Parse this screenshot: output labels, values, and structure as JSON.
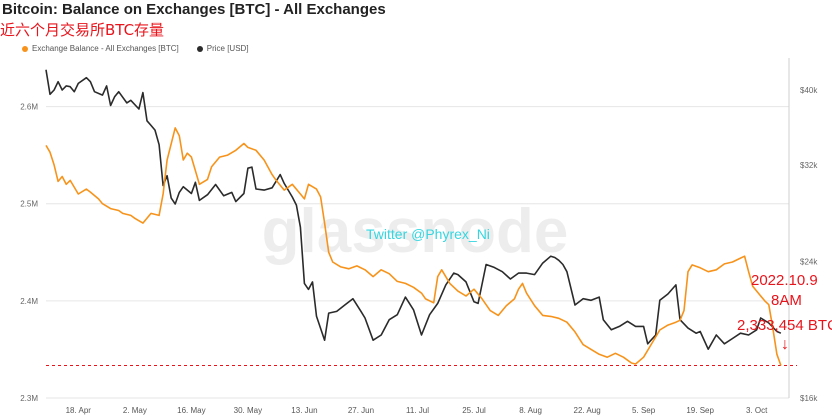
{
  "header": {
    "title": "Bitcoin: Balance on Exchanges [BTC] - All Exchanges",
    "subtitle": "近六个月交易所BTC存量"
  },
  "watermark": {
    "text": "glassnode",
    "twitter": "Twitter @Phyrex_Ni"
  },
  "annotations": {
    "date": "2022.10.9",
    "time": "8AM",
    "value": "2,333,454 BTC",
    "arrow": "↓"
  },
  "colors": {
    "balance": "#f7931a",
    "price": "#2b2b2b",
    "reference_line": "#e8141c",
    "grid": "#e6e6e6"
  },
  "chart_data": {
    "type": "line",
    "x_tick_labels": [
      "18. Apr",
      "2. May",
      "16. May",
      "30. May",
      "13. Jun",
      "27. Jun",
      "11. Jul",
      "25. Jul",
      "8. Aug",
      "22. Aug",
      "5. Sep",
      "19. Sep",
      "3. Oct"
    ],
    "x_tick_dates": [
      "2022-04-18",
      "2022-05-02",
      "2022-05-16",
      "2022-05-30",
      "2022-06-13",
      "2022-06-27",
      "2022-07-11",
      "2022-07-25",
      "2022-08-08",
      "2022-08-22",
      "2022-09-05",
      "2022-09-19",
      "2022-10-03"
    ],
    "x_range": [
      "2022-04-10",
      "2022-10-11"
    ],
    "y_left": {
      "ticks": [
        "2.3M",
        "2.4M",
        "2.5M",
        "2.6M"
      ],
      "tick_values": [
        2300000,
        2400000,
        2500000,
        2600000
      ],
      "range": [
        2300000,
        2650000
      ]
    },
    "y_right": {
      "ticks": [
        "$16k",
        "$24k",
        "$32k",
        "$40k"
      ],
      "tick_values": [
        16000,
        24000,
        32000,
        40000
      ],
      "range": [
        16000,
        44000
      ],
      "scale": "log"
    },
    "reference_line": {
      "value": 2333454
    },
    "grid": "horizontal",
    "legend_position": "top-left",
    "series": [
      {
        "name": "Exchange Balance - All Exchanges [BTC]",
        "axis": "left",
        "values": [
          [
            "2022-04-10",
            2560000
          ],
          [
            "2022-04-11",
            2553000
          ],
          [
            "2022-04-12",
            2540000
          ],
          [
            "2022-04-13",
            2523000
          ],
          [
            "2022-04-14",
            2528000
          ],
          [
            "2022-04-15",
            2520000
          ],
          [
            "2022-04-16",
            2524000
          ],
          [
            "2022-04-18",
            2510000
          ],
          [
            "2022-04-20",
            2515000
          ],
          [
            "2022-04-21",
            2512000
          ],
          [
            "2022-04-23",
            2505000
          ],
          [
            "2022-04-24",
            2500000
          ],
          [
            "2022-04-26",
            2495000
          ],
          [
            "2022-04-28",
            2493000
          ],
          [
            "2022-04-29",
            2490000
          ],
          [
            "2022-05-01",
            2488000
          ],
          [
            "2022-05-02",
            2485000
          ],
          [
            "2022-05-04",
            2480000
          ],
          [
            "2022-05-06",
            2490000
          ],
          [
            "2022-05-08",
            2488000
          ],
          [
            "2022-05-09",
            2510000
          ],
          [
            "2022-05-10",
            2545000
          ],
          [
            "2022-05-12",
            2578000
          ],
          [
            "2022-05-13",
            2570000
          ],
          [
            "2022-05-14",
            2545000
          ],
          [
            "2022-05-15",
            2552000
          ],
          [
            "2022-05-16",
            2548000
          ],
          [
            "2022-05-18",
            2520000
          ],
          [
            "2022-05-20",
            2525000
          ],
          [
            "2022-05-21",
            2538000
          ],
          [
            "2022-05-23",
            2548000
          ],
          [
            "2022-05-25",
            2550000
          ],
          [
            "2022-05-27",
            2555000
          ],
          [
            "2022-05-29",
            2562000
          ],
          [
            "2022-05-30",
            2558000
          ],
          [
            "2022-06-01",
            2555000
          ],
          [
            "2022-06-03",
            2545000
          ],
          [
            "2022-06-05",
            2530000
          ],
          [
            "2022-06-06",
            2524000
          ],
          [
            "2022-06-08",
            2514000
          ],
          [
            "2022-06-10",
            2520000
          ],
          [
            "2022-06-12",
            2510000
          ],
          [
            "2022-06-13",
            2505000
          ],
          [
            "2022-06-14",
            2520000
          ],
          [
            "2022-06-16",
            2515000
          ],
          [
            "2022-06-17",
            2507000
          ],
          [
            "2022-06-18",
            2480000
          ],
          [
            "2022-06-19",
            2450000
          ],
          [
            "2022-06-20",
            2440000
          ],
          [
            "2022-06-22",
            2435000
          ],
          [
            "2022-06-24",
            2433000
          ],
          [
            "2022-06-26",
            2436000
          ],
          [
            "2022-06-28",
            2432000
          ],
          [
            "2022-06-30",
            2425000
          ],
          [
            "2022-07-02",
            2432000
          ],
          [
            "2022-07-04",
            2428000
          ],
          [
            "2022-07-06",
            2420000
          ],
          [
            "2022-07-08",
            2418000
          ],
          [
            "2022-07-10",
            2414000
          ],
          [
            "2022-07-12",
            2408000
          ],
          [
            "2022-07-13",
            2402000
          ],
          [
            "2022-07-15",
            2398000
          ],
          [
            "2022-07-16",
            2425000
          ],
          [
            "2022-07-17",
            2432000
          ],
          [
            "2022-07-19",
            2418000
          ],
          [
            "2022-07-21",
            2410000
          ],
          [
            "2022-07-23",
            2405000
          ],
          [
            "2022-07-25",
            2412000
          ],
          [
            "2022-07-27",
            2402000
          ],
          [
            "2022-07-29",
            2390000
          ],
          [
            "2022-07-31",
            2385000
          ],
          [
            "2022-08-02",
            2395000
          ],
          [
            "2022-08-04",
            2402000
          ],
          [
            "2022-08-05",
            2412000
          ],
          [
            "2022-08-06",
            2418000
          ],
          [
            "2022-08-07",
            2408000
          ],
          [
            "2022-08-09",
            2395000
          ],
          [
            "2022-08-11",
            2385000
          ],
          [
            "2022-08-13",
            2384000
          ],
          [
            "2022-08-15",
            2382000
          ],
          [
            "2022-08-17",
            2378000
          ],
          [
            "2022-08-19",
            2368000
          ],
          [
            "2022-08-21",
            2355000
          ],
          [
            "2022-08-23",
            2350000
          ],
          [
            "2022-08-25",
            2345000
          ],
          [
            "2022-08-27",
            2342000
          ],
          [
            "2022-08-29",
            2346000
          ],
          [
            "2022-08-31",
            2342000
          ],
          [
            "2022-09-02",
            2336000
          ],
          [
            "2022-09-03",
            2335000
          ],
          [
            "2022-09-05",
            2342000
          ],
          [
            "2022-09-07",
            2356000
          ],
          [
            "2022-09-09",
            2370000
          ],
          [
            "2022-09-11",
            2375000
          ],
          [
            "2022-09-13",
            2378000
          ],
          [
            "2022-09-14",
            2380000
          ],
          [
            "2022-09-15",
            2390000
          ],
          [
            "2022-09-16",
            2430000
          ],
          [
            "2022-09-17",
            2437000
          ],
          [
            "2022-09-19",
            2434000
          ],
          [
            "2022-09-21",
            2430000
          ],
          [
            "2022-09-23",
            2432000
          ],
          [
            "2022-09-25",
            2438000
          ],
          [
            "2022-09-27",
            2440000
          ],
          [
            "2022-09-29",
            2444000
          ],
          [
            "2022-09-30",
            2446000
          ],
          [
            "2022-10-01",
            2430000
          ],
          [
            "2022-10-02",
            2415000
          ],
          [
            "2022-10-03",
            2410000
          ],
          [
            "2022-10-04",
            2405000
          ],
          [
            "2022-10-05",
            2400000
          ],
          [
            "2022-10-06",
            2396000
          ],
          [
            "2022-10-07",
            2372000
          ],
          [
            "2022-10-08",
            2345000
          ],
          [
            "2022-10-09",
            2333454
          ]
        ]
      },
      {
        "name": "Price [USD]",
        "axis": "right",
        "values": [
          [
            "2022-04-10",
            42500
          ],
          [
            "2022-04-11",
            39500
          ],
          [
            "2022-04-12",
            40000
          ],
          [
            "2022-04-13",
            41000
          ],
          [
            "2022-04-14",
            40000
          ],
          [
            "2022-04-15",
            40500
          ],
          [
            "2022-04-16",
            40400
          ],
          [
            "2022-04-17",
            39800
          ],
          [
            "2022-04-18",
            40800
          ],
          [
            "2022-04-20",
            41500
          ],
          [
            "2022-04-21",
            41000
          ],
          [
            "2022-04-22",
            39800
          ],
          [
            "2022-04-24",
            39400
          ],
          [
            "2022-04-25",
            40500
          ],
          [
            "2022-04-26",
            38200
          ],
          [
            "2022-04-27",
            39200
          ],
          [
            "2022-04-28",
            39800
          ],
          [
            "2022-04-30",
            38500
          ],
          [
            "2022-05-01",
            38800
          ],
          [
            "2022-05-03",
            37800
          ],
          [
            "2022-05-04",
            39700
          ],
          [
            "2022-05-05",
            36500
          ],
          [
            "2022-05-06",
            36000
          ],
          [
            "2022-05-07",
            35500
          ],
          [
            "2022-05-08",
            34000
          ],
          [
            "2022-05-09",
            30100
          ],
          [
            "2022-05-10",
            31000
          ],
          [
            "2022-05-11",
            29000
          ],
          [
            "2022-05-12",
            28500
          ],
          [
            "2022-05-13",
            29500
          ],
          [
            "2022-05-14",
            30000
          ],
          [
            "2022-05-16",
            29400
          ],
          [
            "2022-05-17",
            30400
          ],
          [
            "2022-05-18",
            28800
          ],
          [
            "2022-05-20",
            29300
          ],
          [
            "2022-05-22",
            30200
          ],
          [
            "2022-05-24",
            29200
          ],
          [
            "2022-05-26",
            29500
          ],
          [
            "2022-05-27",
            28700
          ],
          [
            "2022-05-29",
            29400
          ],
          [
            "2022-05-30",
            31700
          ],
          [
            "2022-05-31",
            31800
          ],
          [
            "2022-06-01",
            29800
          ],
          [
            "2022-06-03",
            29700
          ],
          [
            "2022-06-05",
            29900
          ],
          [
            "2022-06-07",
            31100
          ],
          [
            "2022-06-08",
            30300
          ],
          [
            "2022-06-10",
            29100
          ],
          [
            "2022-06-11",
            28400
          ],
          [
            "2022-06-12",
            26600
          ],
          [
            "2022-06-13",
            22500
          ],
          [
            "2022-06-14",
            22100
          ],
          [
            "2022-06-15",
            22600
          ],
          [
            "2022-06-16",
            20400
          ],
          [
            "2022-06-18",
            19000
          ],
          [
            "2022-06-19",
            20600
          ],
          [
            "2022-06-21",
            20700
          ],
          [
            "2022-06-23",
            21100
          ],
          [
            "2022-06-25",
            21500
          ],
          [
            "2022-06-27",
            20700
          ],
          [
            "2022-06-28",
            20300
          ],
          [
            "2022-06-30",
            19000
          ],
          [
            "2022-07-02",
            19300
          ],
          [
            "2022-07-04",
            20200
          ],
          [
            "2022-07-06",
            20500
          ],
          [
            "2022-07-08",
            21600
          ],
          [
            "2022-07-10",
            20800
          ],
          [
            "2022-07-12",
            19300
          ],
          [
            "2022-07-14",
            20500
          ],
          [
            "2022-07-16",
            21200
          ],
          [
            "2022-07-18",
            22400
          ],
          [
            "2022-07-20",
            23200
          ],
          [
            "2022-07-21",
            23100
          ],
          [
            "2022-07-23",
            22600
          ],
          [
            "2022-07-25",
            21300
          ],
          [
            "2022-07-26",
            21200
          ],
          [
            "2022-07-28",
            23800
          ],
          [
            "2022-07-30",
            23600
          ],
          [
            "2022-08-01",
            23300
          ],
          [
            "2022-08-03",
            22800
          ],
          [
            "2022-08-05",
            23200
          ],
          [
            "2022-08-07",
            23200
          ],
          [
            "2022-08-09",
            23100
          ],
          [
            "2022-08-11",
            23900
          ],
          [
            "2022-08-13",
            24400
          ],
          [
            "2022-08-14",
            24300
          ],
          [
            "2022-08-15",
            24100
          ],
          [
            "2022-08-16",
            23800
          ],
          [
            "2022-08-17",
            23300
          ],
          [
            "2022-08-19",
            21100
          ],
          [
            "2022-08-21",
            21500
          ],
          [
            "2022-08-23",
            21400
          ],
          [
            "2022-08-25",
            21600
          ],
          [
            "2022-08-26",
            20200
          ],
          [
            "2022-08-28",
            19600
          ],
          [
            "2022-08-30",
            19800
          ],
          [
            "2022-09-01",
            20100
          ],
          [
            "2022-09-03",
            19800
          ],
          [
            "2022-09-05",
            19800
          ],
          [
            "2022-09-06",
            18800
          ],
          [
            "2022-09-08",
            19300
          ],
          [
            "2022-09-09",
            21400
          ],
          [
            "2022-09-11",
            21800
          ],
          [
            "2022-09-13",
            22400
          ],
          [
            "2022-09-14",
            20200
          ],
          [
            "2022-09-16",
            19700
          ],
          [
            "2022-09-18",
            19400
          ],
          [
            "2022-09-19",
            19500
          ],
          [
            "2022-09-21",
            18500
          ],
          [
            "2022-09-23",
            19300
          ],
          [
            "2022-09-25",
            18800
          ],
          [
            "2022-09-27",
            19100
          ],
          [
            "2022-09-29",
            19400
          ],
          [
            "2022-10-01",
            19300
          ],
          [
            "2022-10-03",
            19600
          ],
          [
            "2022-10-04",
            20300
          ],
          [
            "2022-10-06",
            20000
          ],
          [
            "2022-10-08",
            19500
          ],
          [
            "2022-10-09",
            19400
          ]
        ]
      }
    ]
  }
}
